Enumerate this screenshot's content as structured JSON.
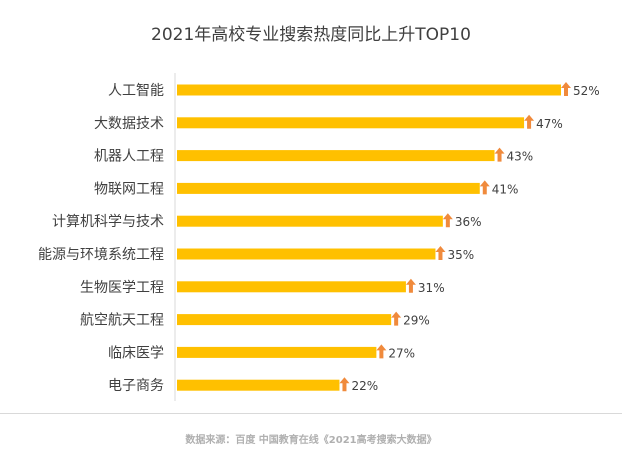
{
  "chart_data": {
    "type": "bar",
    "orientation": "horizontal",
    "title": "2021年高校专业搜索热度同比上升TOP10",
    "categories": [
      "人工智能",
      "大数据技术",
      "机器人工程",
      "物联网工程",
      "计算机科学与技术",
      "能源与环境系统工程",
      "生物医学工程",
      "航空航天工程",
      "临床医学",
      "电子商务"
    ],
    "values": [
      52,
      47,
      43,
      41,
      36,
      35,
      31,
      29,
      27,
      22
    ],
    "value_labels": [
      "52%",
      "47%",
      "43%",
      "41%",
      "36%",
      "35%",
      "31%",
      "29%",
      "27%",
      "22%"
    ],
    "unit": "%",
    "xlim": [
      0,
      52
    ],
    "xlabel": "",
    "ylabel": "",
    "grid": false,
    "legend": "none",
    "bar_color": "#ffc000",
    "arrow_color": "#f08a3c"
  },
  "source_note": "数据来源：百度 中国教育在线《2021高考搜索大数据》"
}
